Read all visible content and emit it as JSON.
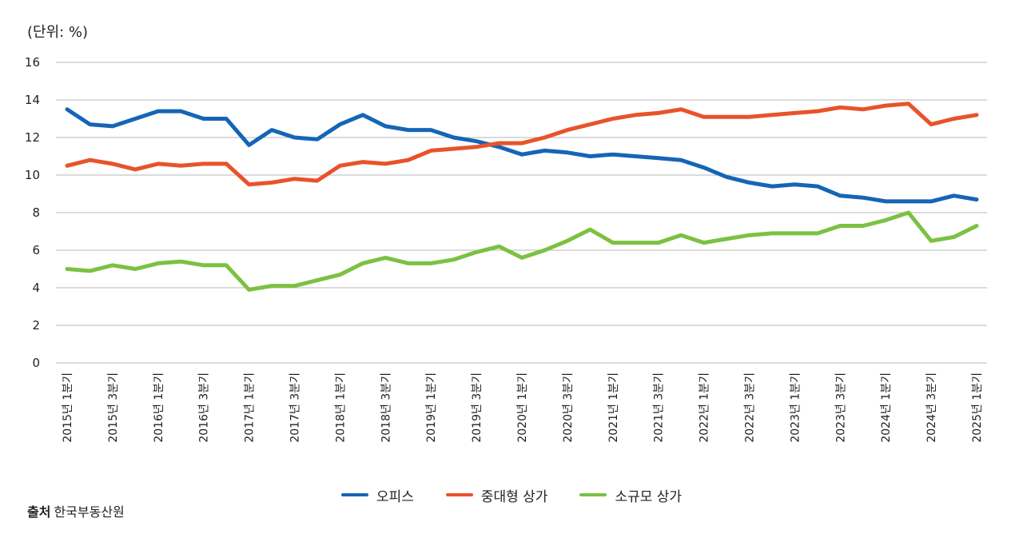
{
  "unit_label": "(단위: %)",
  "source": {
    "label": "출처",
    "text": "한국부동산원"
  },
  "chart_data": {
    "type": "line",
    "ylim": [
      0,
      16
    ],
    "y_ticks": [
      0,
      2,
      4,
      6,
      8,
      10,
      12,
      14,
      16
    ],
    "grid": true,
    "legend_position": "bottom-center",
    "x_tick_labels": [
      "2015년 1분기",
      "2015년 3분기",
      "2016년 1분기",
      "2016년 3분기",
      "2017년 1분기",
      "2017년 3분기",
      "2018년 1분기",
      "2018년 3분기",
      "2019년 1분기",
      "2019년 3분기",
      "2020년 1분기",
      "2020년 3분기",
      "2021년 1분기",
      "2021년 3분기",
      "2022년 1분기",
      "2022년 3분기",
      "2023년 1분기",
      "2023년 3분기",
      "2024년 1분기",
      "2024년 3분기",
      "2025년 1분기"
    ],
    "x": [
      "2015년 1분기",
      "2015년 2분기",
      "2015년 3분기",
      "2015년 4분기",
      "2016년 1분기",
      "2016년 2분기",
      "2016년 3분기",
      "2016년 4분기",
      "2017년 1분기",
      "2017년 2분기",
      "2017년 3분기",
      "2017년 4분기",
      "2018년 1분기",
      "2018년 2분기",
      "2018년 3분기",
      "2018년 4분기",
      "2019년 1분기",
      "2019년 2분기",
      "2019년 3분기",
      "2019년 4분기",
      "2020년 1분기",
      "2020년 2분기",
      "2020년 3분기",
      "2020년 4분기",
      "2021년 1분기",
      "2021년 2분기",
      "2021년 3분기",
      "2021년 4분기",
      "2022년 1분기",
      "2022년 2분기",
      "2022년 3분기",
      "2022년 4분기",
      "2023년 1분기",
      "2023년 2분기",
      "2023년 3분기",
      "2023년 4분기",
      "2024년 1분기",
      "2024년 2분기",
      "2024년 3분기",
      "2024년 4분기",
      "2025년 1분기"
    ],
    "series": [
      {
        "name": "오피스",
        "color": "#1565b6",
        "values": [
          13.5,
          12.7,
          12.6,
          13.0,
          13.4,
          13.4,
          13.0,
          13.0,
          11.6,
          12.4,
          12.0,
          11.9,
          12.7,
          13.2,
          12.6,
          12.4,
          12.4,
          12.0,
          11.8,
          11.5,
          11.1,
          11.3,
          11.2,
          11.0,
          11.1,
          11.0,
          10.9,
          10.8,
          10.4,
          9.9,
          9.6,
          9.4,
          9.5,
          9.4,
          8.9,
          8.8,
          8.6,
          8.6,
          8.6,
          8.9,
          8.7
        ]
      },
      {
        "name": "중대형 상가",
        "color": "#e8532a",
        "values": [
          10.5,
          10.8,
          10.6,
          10.3,
          10.6,
          10.5,
          10.6,
          10.6,
          9.5,
          9.6,
          9.8,
          9.7,
          10.5,
          10.7,
          10.6,
          10.8,
          11.3,
          11.4,
          11.5,
          11.7,
          11.7,
          12.0,
          12.4,
          12.7,
          13.0,
          13.2,
          13.3,
          13.5,
          13.1,
          13.1,
          13.1,
          13.2,
          13.3,
          13.4,
          13.6,
          13.5,
          13.7,
          13.8,
          12.7,
          13.0,
          13.2
        ]
      },
      {
        "name": "소규모 상가",
        "color": "#7cc142",
        "values": [
          5.0,
          4.9,
          5.2,
          5.0,
          5.3,
          5.4,
          5.2,
          5.2,
          3.9,
          4.1,
          4.1,
          4.4,
          4.7,
          5.3,
          5.6,
          5.3,
          5.3,
          5.5,
          5.9,
          6.2,
          5.6,
          6.0,
          6.5,
          7.1,
          6.4,
          6.4,
          6.4,
          6.8,
          6.4,
          6.6,
          6.8,
          6.9,
          6.9,
          6.9,
          7.3,
          7.3,
          7.6,
          8.0,
          6.5,
          6.7,
          7.3
        ]
      }
    ]
  }
}
